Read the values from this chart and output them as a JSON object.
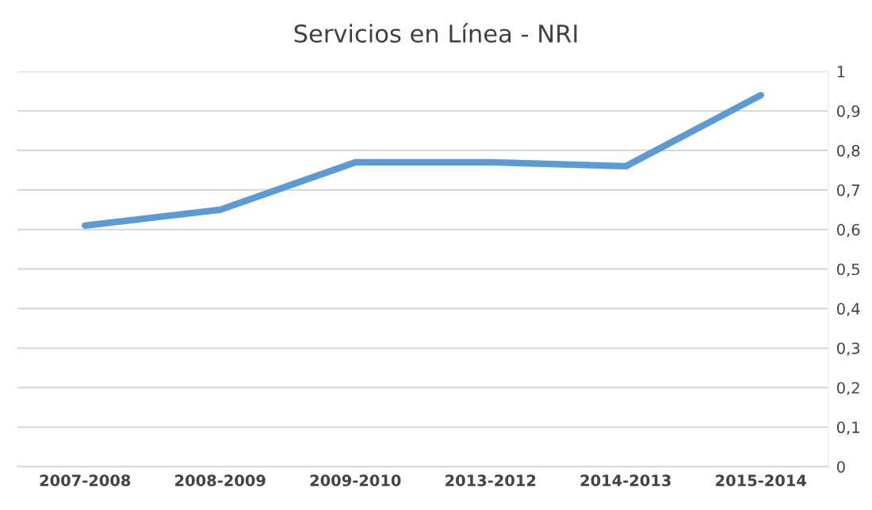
{
  "chart_data": {
    "type": "line",
    "title": "Servicios en Línea - NRI",
    "categories": [
      "2007-2008",
      "2008-2009",
      "2009-2010",
      "2013-2012",
      "2014-2013",
      "2015-2014"
    ],
    "series": [
      {
        "color": "#5b9bd5",
        "values": [
          0.61,
          0.65,
          0.77,
          0.77,
          0.76,
          0.94
        ]
      }
    ],
    "ylim": [
      0,
      1
    ],
    "yticks": [
      0,
      {
        "value": 0.1,
        "label": "0,1"
      },
      {
        "value": 0.2,
        "label": "0,2"
      },
      {
        "value": 0.3,
        "label": "0,3"
      },
      {
        "value": 0.4,
        "label": "0,4"
      },
      {
        "value": 0.5,
        "label": "0,5"
      },
      {
        "value": 0.6,
        "label": "0,6"
      },
      {
        "value": 0.7,
        "label": "0,7"
      },
      {
        "value": 0.8,
        "label": "0,8"
      },
      {
        "value": 0.9,
        "label": "0,9"
      },
      1
    ],
    "grid": "y",
    "legend": false,
    "marker": "none",
    "line_style": "solid"
  }
}
